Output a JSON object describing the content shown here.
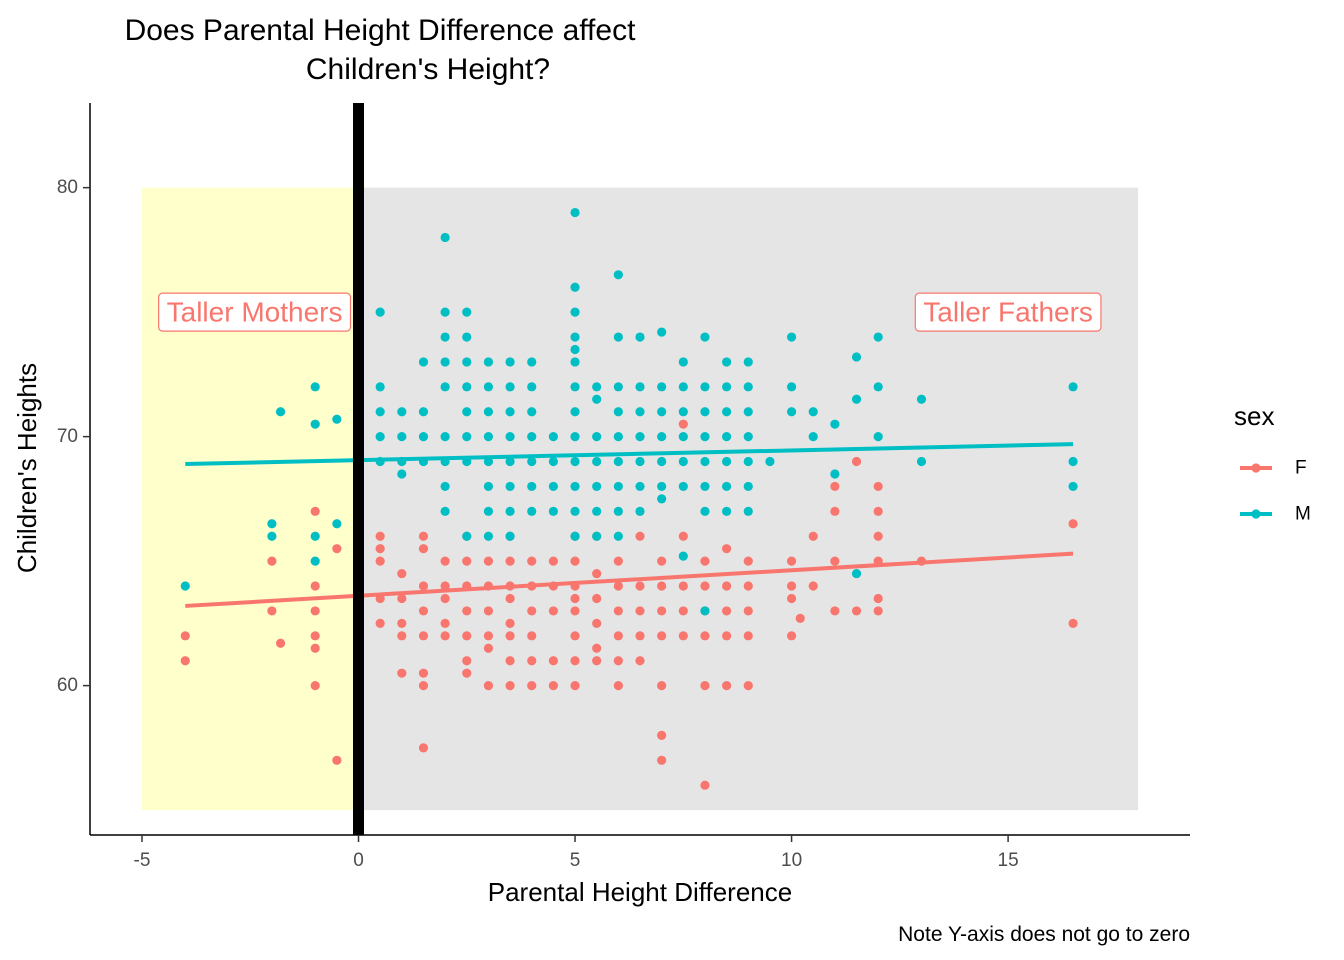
{
  "chart_data": {
    "type": "scatter",
    "title_lines": [
      "Does Parental Height Difference affect",
      "Children's Height?"
    ],
    "xlabel": "Parental Height Difference",
    "ylabel": "Children's Heights",
    "caption": "Note Y-axis does not go to zero",
    "xlim": [
      -6.2,
      19.2
    ],
    "ylim": [
      54.0,
      83.4
    ],
    "x_ticks": [
      -5,
      0,
      5,
      10,
      15
    ],
    "y_ticks": [
      60,
      70,
      80
    ],
    "x_tick_labels": [
      "-5",
      "0",
      "5",
      "10",
      "15"
    ],
    "y_tick_labels": [
      "60",
      "70",
      "80"
    ],
    "grid": false,
    "legend": {
      "title": "sex",
      "position": "right",
      "entries": [
        {
          "label": "F",
          "color": "#F8766D"
        },
        {
          "label": "M",
          "color": "#00BFC4"
        }
      ]
    },
    "regions": [
      {
        "x": [
          -5,
          0
        ],
        "y": [
          55,
          80
        ],
        "color": "#FFFFCC"
      },
      {
        "x": [
          0,
          18
        ],
        "y": [
          55,
          80
        ],
        "color": "#E5E5E5"
      }
    ],
    "vline": {
      "x": 0,
      "color": "#000000"
    },
    "annotations": [
      {
        "text": "Taller Mothers",
        "x": -2.4,
        "y": 75,
        "color": "#F8766D"
      },
      {
        "text": "Taller Fathers",
        "x": 15,
        "y": 75,
        "color": "#F8766D"
      }
    ],
    "series": [
      {
        "name": "F",
        "color": "#F8766D",
        "trend": {
          "x": [
            -4,
            16.5
          ],
          "y": [
            63.2,
            65.3
          ]
        },
        "points": [
          [
            -4,
            62
          ],
          [
            -4,
            61
          ],
          [
            -2,
            65
          ],
          [
            -2,
            63
          ],
          [
            -1.8,
            61.7
          ],
          [
            -1,
            67
          ],
          [
            -1,
            64
          ],
          [
            -1,
            63
          ],
          [
            -1,
            62
          ],
          [
            -1,
            61.5
          ],
          [
            -1,
            60
          ],
          [
            -0.5,
            65.5
          ],
          [
            -0.5,
            57
          ],
          [
            0.5,
            66
          ],
          [
            0.5,
            65.5
          ],
          [
            0.5,
            65
          ],
          [
            0.5,
            63.5
          ],
          [
            0.5,
            62.5
          ],
          [
            1,
            64.5
          ],
          [
            1,
            63.5
          ],
          [
            1,
            62.5
          ],
          [
            1,
            62
          ],
          [
            1,
            60.5
          ],
          [
            1.5,
            66
          ],
          [
            1.5,
            65.5
          ],
          [
            1.5,
            64
          ],
          [
            1.5,
            63
          ],
          [
            1.5,
            62
          ],
          [
            1.5,
            60.5
          ],
          [
            1.5,
            60
          ],
          [
            1.5,
            57.5
          ],
          [
            2,
            65
          ],
          [
            2,
            64
          ],
          [
            2,
            63.5
          ],
          [
            2,
            62.5
          ],
          [
            2,
            62
          ],
          [
            2.5,
            66
          ],
          [
            2.5,
            65
          ],
          [
            2.5,
            64
          ],
          [
            2.5,
            63
          ],
          [
            2.5,
            62
          ],
          [
            2.5,
            61
          ],
          [
            2.5,
            60.5
          ],
          [
            3,
            65
          ],
          [
            3,
            64
          ],
          [
            3,
            63
          ],
          [
            3,
            62
          ],
          [
            3,
            61.5
          ],
          [
            3,
            60
          ],
          [
            3.5,
            66
          ],
          [
            3.5,
            65
          ],
          [
            3.5,
            64
          ],
          [
            3.5,
            63.5
          ],
          [
            3.5,
            62.5
          ],
          [
            3.5,
            62
          ],
          [
            3.5,
            61
          ],
          [
            3.5,
            60
          ],
          [
            4,
            65
          ],
          [
            4,
            64
          ],
          [
            4,
            63
          ],
          [
            4,
            62
          ],
          [
            4,
            61
          ],
          [
            4,
            60
          ],
          [
            4.5,
            65
          ],
          [
            4.5,
            64
          ],
          [
            4.5,
            63
          ],
          [
            4.5,
            61
          ],
          [
            4.5,
            60
          ],
          [
            5,
            66
          ],
          [
            5,
            65
          ],
          [
            5,
            64
          ],
          [
            5,
            63.5
          ],
          [
            5,
            63
          ],
          [
            5,
            62
          ],
          [
            5,
            61
          ],
          [
            5,
            60
          ],
          [
            5.5,
            66
          ],
          [
            5.5,
            64.5
          ],
          [
            5.5,
            63.5
          ],
          [
            5.5,
            62.5
          ],
          [
            5.5,
            61.5
          ],
          [
            5.5,
            61
          ],
          [
            6,
            65
          ],
          [
            6,
            64
          ],
          [
            6,
            63
          ],
          [
            6,
            62
          ],
          [
            6,
            61
          ],
          [
            6,
            60
          ],
          [
            6.5,
            66
          ],
          [
            6.5,
            64
          ],
          [
            6.5,
            63
          ],
          [
            6.5,
            62
          ],
          [
            6.5,
            61
          ],
          [
            7,
            65
          ],
          [
            7,
            64
          ],
          [
            7,
            63
          ],
          [
            7,
            62
          ],
          [
            7,
            60
          ],
          [
            7,
            58
          ],
          [
            7,
            57
          ],
          [
            7.5,
            70.5
          ],
          [
            7.5,
            66
          ],
          [
            7.5,
            64
          ],
          [
            7.5,
            63
          ],
          [
            7.5,
            62
          ],
          [
            8,
            65
          ],
          [
            8,
            64
          ],
          [
            8,
            63
          ],
          [
            8,
            62
          ],
          [
            8,
            60
          ],
          [
            8,
            56
          ],
          [
            8.5,
            65.5
          ],
          [
            8.5,
            64
          ],
          [
            8.5,
            63
          ],
          [
            8.5,
            62
          ],
          [
            8.5,
            60
          ],
          [
            9,
            65
          ],
          [
            9,
            64
          ],
          [
            9,
            63
          ],
          [
            9,
            62
          ],
          [
            9,
            60
          ],
          [
            10,
            65
          ],
          [
            10,
            64
          ],
          [
            10,
            63.5
          ],
          [
            10,
            62
          ],
          [
            10.2,
            62.7
          ],
          [
            10.5,
            66
          ],
          [
            10.5,
            64
          ],
          [
            11,
            68
          ],
          [
            11,
            67
          ],
          [
            11,
            65
          ],
          [
            11,
            63
          ],
          [
            11.5,
            69
          ],
          [
            11.5,
            63
          ],
          [
            12,
            68
          ],
          [
            12,
            67
          ],
          [
            12,
            66
          ],
          [
            12,
            65
          ],
          [
            12,
            63.5
          ],
          [
            12,
            63
          ],
          [
            13,
            65
          ],
          [
            16.5,
            66.5
          ],
          [
            16.5,
            62.5
          ]
        ]
      },
      {
        "name": "M",
        "color": "#00BFC4",
        "trend": {
          "x": [
            -4,
            16.5
          ],
          "y": [
            68.9,
            69.7
          ]
        },
        "points": [
          [
            -4,
            64
          ],
          [
            -2,
            66.5
          ],
          [
            -2,
            66
          ],
          [
            -1.8,
            71
          ],
          [
            -1,
            72
          ],
          [
            -1,
            70.5
          ],
          [
            -1,
            66
          ],
          [
            -1,
            65
          ],
          [
            -0.5,
            70.7
          ],
          [
            -0.5,
            66.5
          ],
          [
            0.5,
            75
          ],
          [
            0.5,
            72
          ],
          [
            0.5,
            71
          ],
          [
            0.5,
            70
          ],
          [
            0.5,
            69
          ],
          [
            1,
            71
          ],
          [
            1,
            70
          ],
          [
            1,
            69
          ],
          [
            1,
            68.5
          ],
          [
            1.5,
            73
          ],
          [
            1.5,
            71
          ],
          [
            1.5,
            70
          ],
          [
            1.5,
            69
          ],
          [
            2,
            78
          ],
          [
            2,
            75
          ],
          [
            2,
            74
          ],
          [
            2,
            73
          ],
          [
            2,
            72
          ],
          [
            2,
            70
          ],
          [
            2,
            69
          ],
          [
            2,
            68
          ],
          [
            2,
            67
          ],
          [
            2.5,
            75
          ],
          [
            2.5,
            74
          ],
          [
            2.5,
            73
          ],
          [
            2.5,
            72
          ],
          [
            2.5,
            71
          ],
          [
            2.5,
            70
          ],
          [
            2.5,
            69
          ],
          [
            2.5,
            66
          ],
          [
            3,
            73
          ],
          [
            3,
            72
          ],
          [
            3,
            71
          ],
          [
            3,
            70
          ],
          [
            3,
            69
          ],
          [
            3,
            68
          ],
          [
            3,
            67
          ],
          [
            3,
            66
          ],
          [
            3.5,
            73
          ],
          [
            3.5,
            72
          ],
          [
            3.5,
            71
          ],
          [
            3.5,
            70
          ],
          [
            3.5,
            69
          ],
          [
            3.5,
            68
          ],
          [
            3.5,
            67
          ],
          [
            3.5,
            66
          ],
          [
            4,
            73
          ],
          [
            4,
            72
          ],
          [
            4,
            71
          ],
          [
            4,
            70
          ],
          [
            4,
            69
          ],
          [
            4,
            68
          ],
          [
            4,
            67
          ],
          [
            4.5,
            70
          ],
          [
            4.5,
            69
          ],
          [
            4.5,
            68
          ],
          [
            4.5,
            67
          ],
          [
            5,
            79
          ],
          [
            5,
            76
          ],
          [
            5,
            75
          ],
          [
            5,
            74
          ],
          [
            5,
            73.5
          ],
          [
            5,
            73
          ],
          [
            5,
            72
          ],
          [
            5,
            71
          ],
          [
            5,
            70
          ],
          [
            5,
            69
          ],
          [
            5,
            68
          ],
          [
            5,
            67
          ],
          [
            5,
            66
          ],
          [
            5.5,
            72
          ],
          [
            5.5,
            71.5
          ],
          [
            5.5,
            70
          ],
          [
            5.5,
            69
          ],
          [
            5.5,
            68
          ],
          [
            5.5,
            67
          ],
          [
            5.5,
            66
          ],
          [
            6,
            76.5
          ],
          [
            6,
            74
          ],
          [
            6,
            72
          ],
          [
            6,
            71
          ],
          [
            6,
            70
          ],
          [
            6,
            69
          ],
          [
            6,
            68
          ],
          [
            6,
            67
          ],
          [
            6,
            66
          ],
          [
            6.5,
            74
          ],
          [
            6.5,
            72
          ],
          [
            6.5,
            71
          ],
          [
            6.5,
            70
          ],
          [
            6.5,
            69
          ],
          [
            6.5,
            68
          ],
          [
            6.5,
            67
          ],
          [
            7,
            74.2
          ],
          [
            7,
            72
          ],
          [
            7,
            71
          ],
          [
            7,
            70
          ],
          [
            7,
            69
          ],
          [
            7,
            68
          ],
          [
            7,
            67.5
          ],
          [
            7.5,
            73
          ],
          [
            7.5,
            72
          ],
          [
            7.5,
            71
          ],
          [
            7.5,
            70
          ],
          [
            7.5,
            69
          ],
          [
            7.5,
            68
          ],
          [
            7.5,
            65.2
          ],
          [
            8,
            74
          ],
          [
            8,
            72
          ],
          [
            8,
            71
          ],
          [
            8,
            70
          ],
          [
            8,
            69
          ],
          [
            8,
            68
          ],
          [
            8,
            67
          ],
          [
            8,
            63
          ],
          [
            8.5,
            73
          ],
          [
            8.5,
            72
          ],
          [
            8.5,
            71
          ],
          [
            8.5,
            70
          ],
          [
            8.5,
            69
          ],
          [
            8.5,
            68
          ],
          [
            8.5,
            67
          ],
          [
            9,
            73
          ],
          [
            9,
            72
          ],
          [
            9,
            71
          ],
          [
            9,
            70
          ],
          [
            9,
            69
          ],
          [
            9,
            68
          ],
          [
            9,
            67
          ],
          [
            9.5,
            69
          ],
          [
            10,
            74
          ],
          [
            10,
            72
          ],
          [
            10,
            71
          ],
          [
            10.5,
            71
          ],
          [
            10.5,
            70
          ],
          [
            11,
            70.5
          ],
          [
            11,
            68.5
          ],
          [
            11.5,
            73.2
          ],
          [
            11.5,
            71.5
          ],
          [
            11.5,
            64.5
          ],
          [
            12,
            74
          ],
          [
            12,
            72
          ],
          [
            12,
            70
          ],
          [
            13,
            71.5
          ],
          [
            13,
            69
          ],
          [
            16.5,
            72
          ],
          [
            16.5,
            69
          ],
          [
            16.5,
            68
          ]
        ]
      }
    ]
  }
}
